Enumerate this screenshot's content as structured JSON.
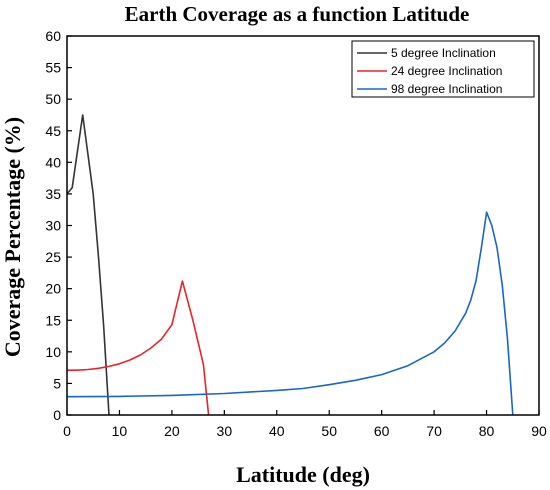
{
  "chart_data": {
    "type": "line",
    "title": "Earth Coverage as a function Latitude",
    "xlabel": "Latitude (deg)",
    "ylabel": "Coverage Percentage (%)",
    "xlim": [
      0,
      90
    ],
    "ylim": [
      0,
      60
    ],
    "xticks": [
      0,
      10,
      20,
      30,
      40,
      50,
      60,
      70,
      80,
      90
    ],
    "yticks": [
      0,
      5,
      10,
      15,
      20,
      25,
      30,
      35,
      40,
      45,
      50,
      55,
      60
    ],
    "grid": false,
    "legend_position": "top-right",
    "series": [
      {
        "name": "5 degree Inclination",
        "color": "#333333",
        "x": [
          0,
          1,
          3,
          5,
          6,
          7,
          8
        ],
        "y": [
          35,
          36,
          47.5,
          35,
          25,
          14,
          0
        ]
      },
      {
        "name": "24 degree Inclination",
        "color": "#e8232a",
        "x": [
          0,
          2,
          4,
          6,
          8,
          10,
          12,
          14,
          16,
          18,
          20,
          22,
          24,
          26,
          27
        ],
        "y": [
          7.1,
          7.1,
          7.2,
          7.4,
          7.7,
          8.1,
          8.7,
          9.5,
          10.6,
          12,
          14.3,
          21.2,
          15,
          8,
          0
        ]
      },
      {
        "name": "98 degree Inclination",
        "color": "#1a66c0",
        "x": [
          0,
          10,
          20,
          30,
          40,
          45,
          50,
          55,
          60,
          65,
          70,
          72,
          74,
          76,
          77,
          78,
          79,
          80,
          81,
          82,
          83,
          84,
          85
        ],
        "y": [
          2.9,
          2.95,
          3.1,
          3.4,
          3.9,
          4.2,
          4.8,
          5.5,
          6.4,
          7.8,
          10,
          11.4,
          13.3,
          16.1,
          18.2,
          21.3,
          26.4,
          32.1,
          30,
          26.5,
          20.5,
          12,
          0
        ]
      }
    ]
  }
}
